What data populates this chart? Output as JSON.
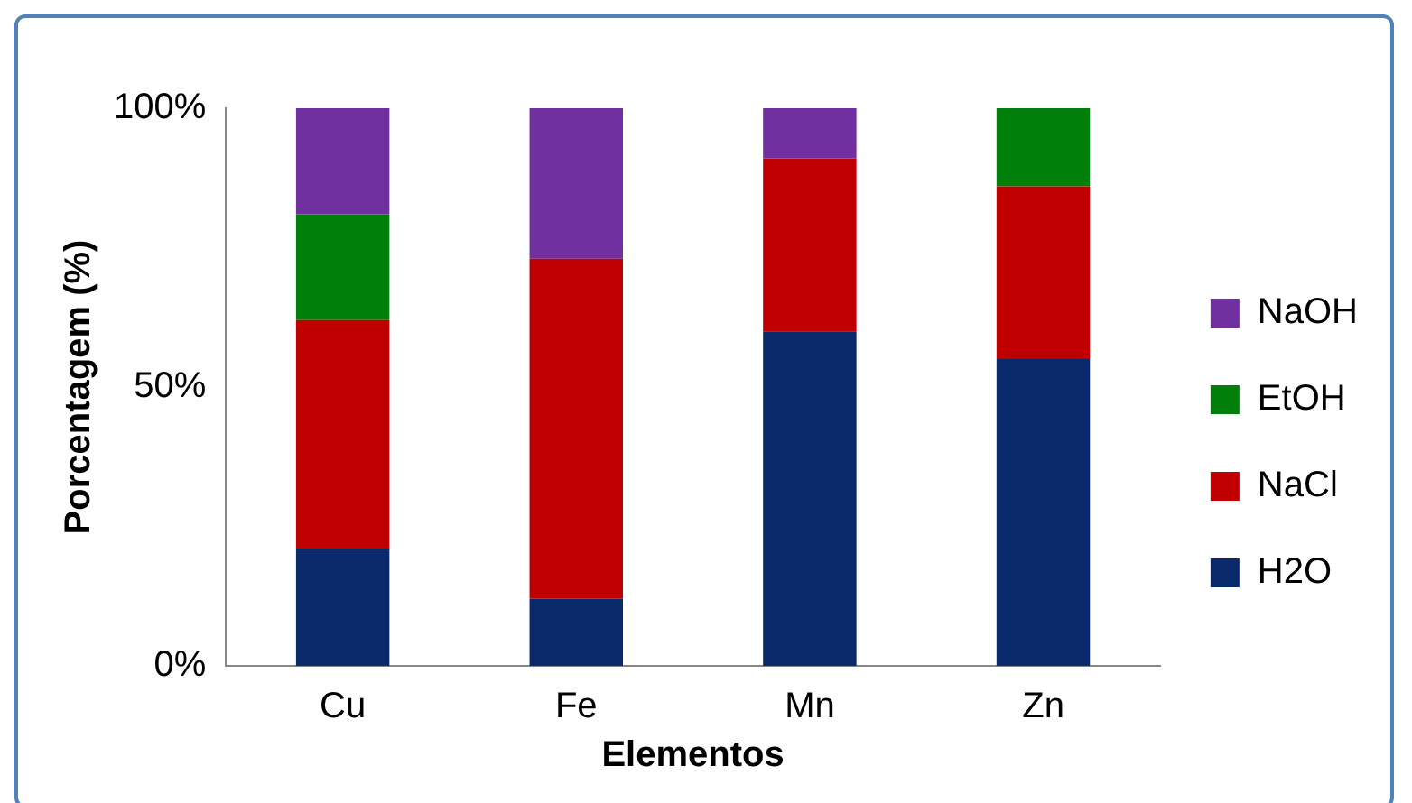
{
  "chart_data": {
    "type": "bar",
    "stacked": true,
    "xlabel": "Elementos",
    "ylabel": "Porcentagem (%)",
    "categories": [
      "Cu",
      "Fe",
      "Mn",
      "Zn"
    ],
    "series": [
      {
        "name": "H2O",
        "color": "#0b2a6b",
        "values": [
          21,
          12,
          60,
          55
        ]
      },
      {
        "name": "NaCl",
        "color": "#c00000",
        "values": [
          41,
          61,
          31,
          31
        ]
      },
      {
        "name": "EtOH",
        "color": "#00800a",
        "values": [
          19,
          0,
          0,
          14
        ]
      },
      {
        "name": "NaOH",
        "color": "#7030a0",
        "values": [
          19,
          27,
          9,
          0
        ]
      }
    ],
    "ylim": [
      0,
      100
    ],
    "yticks": [
      {
        "value": 0,
        "label": "0%"
      },
      {
        "value": 50,
        "label": "50%"
      },
      {
        "value": 100,
        "label": "100%"
      }
    ],
    "grid": false,
    "legend": "right"
  }
}
